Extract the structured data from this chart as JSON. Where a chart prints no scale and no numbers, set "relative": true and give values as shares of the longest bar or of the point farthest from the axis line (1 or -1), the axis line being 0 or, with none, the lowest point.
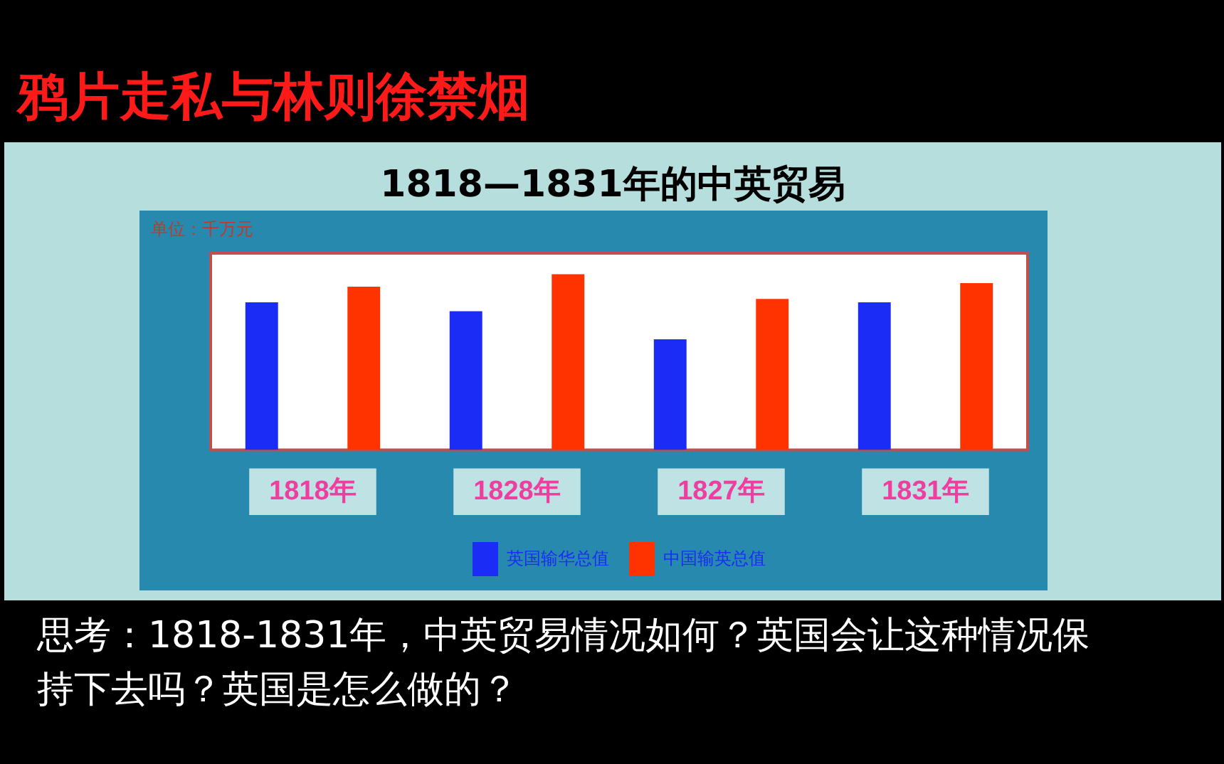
{
  "chart_data": {
    "type": "bar",
    "title": "1818—1831年的中英贸易",
    "ylabel": "单位：千万元",
    "relative": true,
    "categories": [
      "1818年",
      "1828年",
      "1827年",
      "1831年"
    ],
    "series": [
      {
        "name": "英国输华总值",
        "color": "#1a2cf5",
        "values": [
          0.84,
          0.79,
          0.63,
          0.84
        ]
      },
      {
        "name": "中国输英总值",
        "color": "#fe3300",
        "values": [
          0.93,
          1,
          0.86,
          0.95
        ]
      }
    ],
    "legend": "bottom",
    "annotations": [
      "鸦片走私与林则徐禁烟",
      "思考：1818-1831年，中英贸易情况如何？英国会让这种情况保持下去吗？英国是怎么做的？"
    ]
  }
}
